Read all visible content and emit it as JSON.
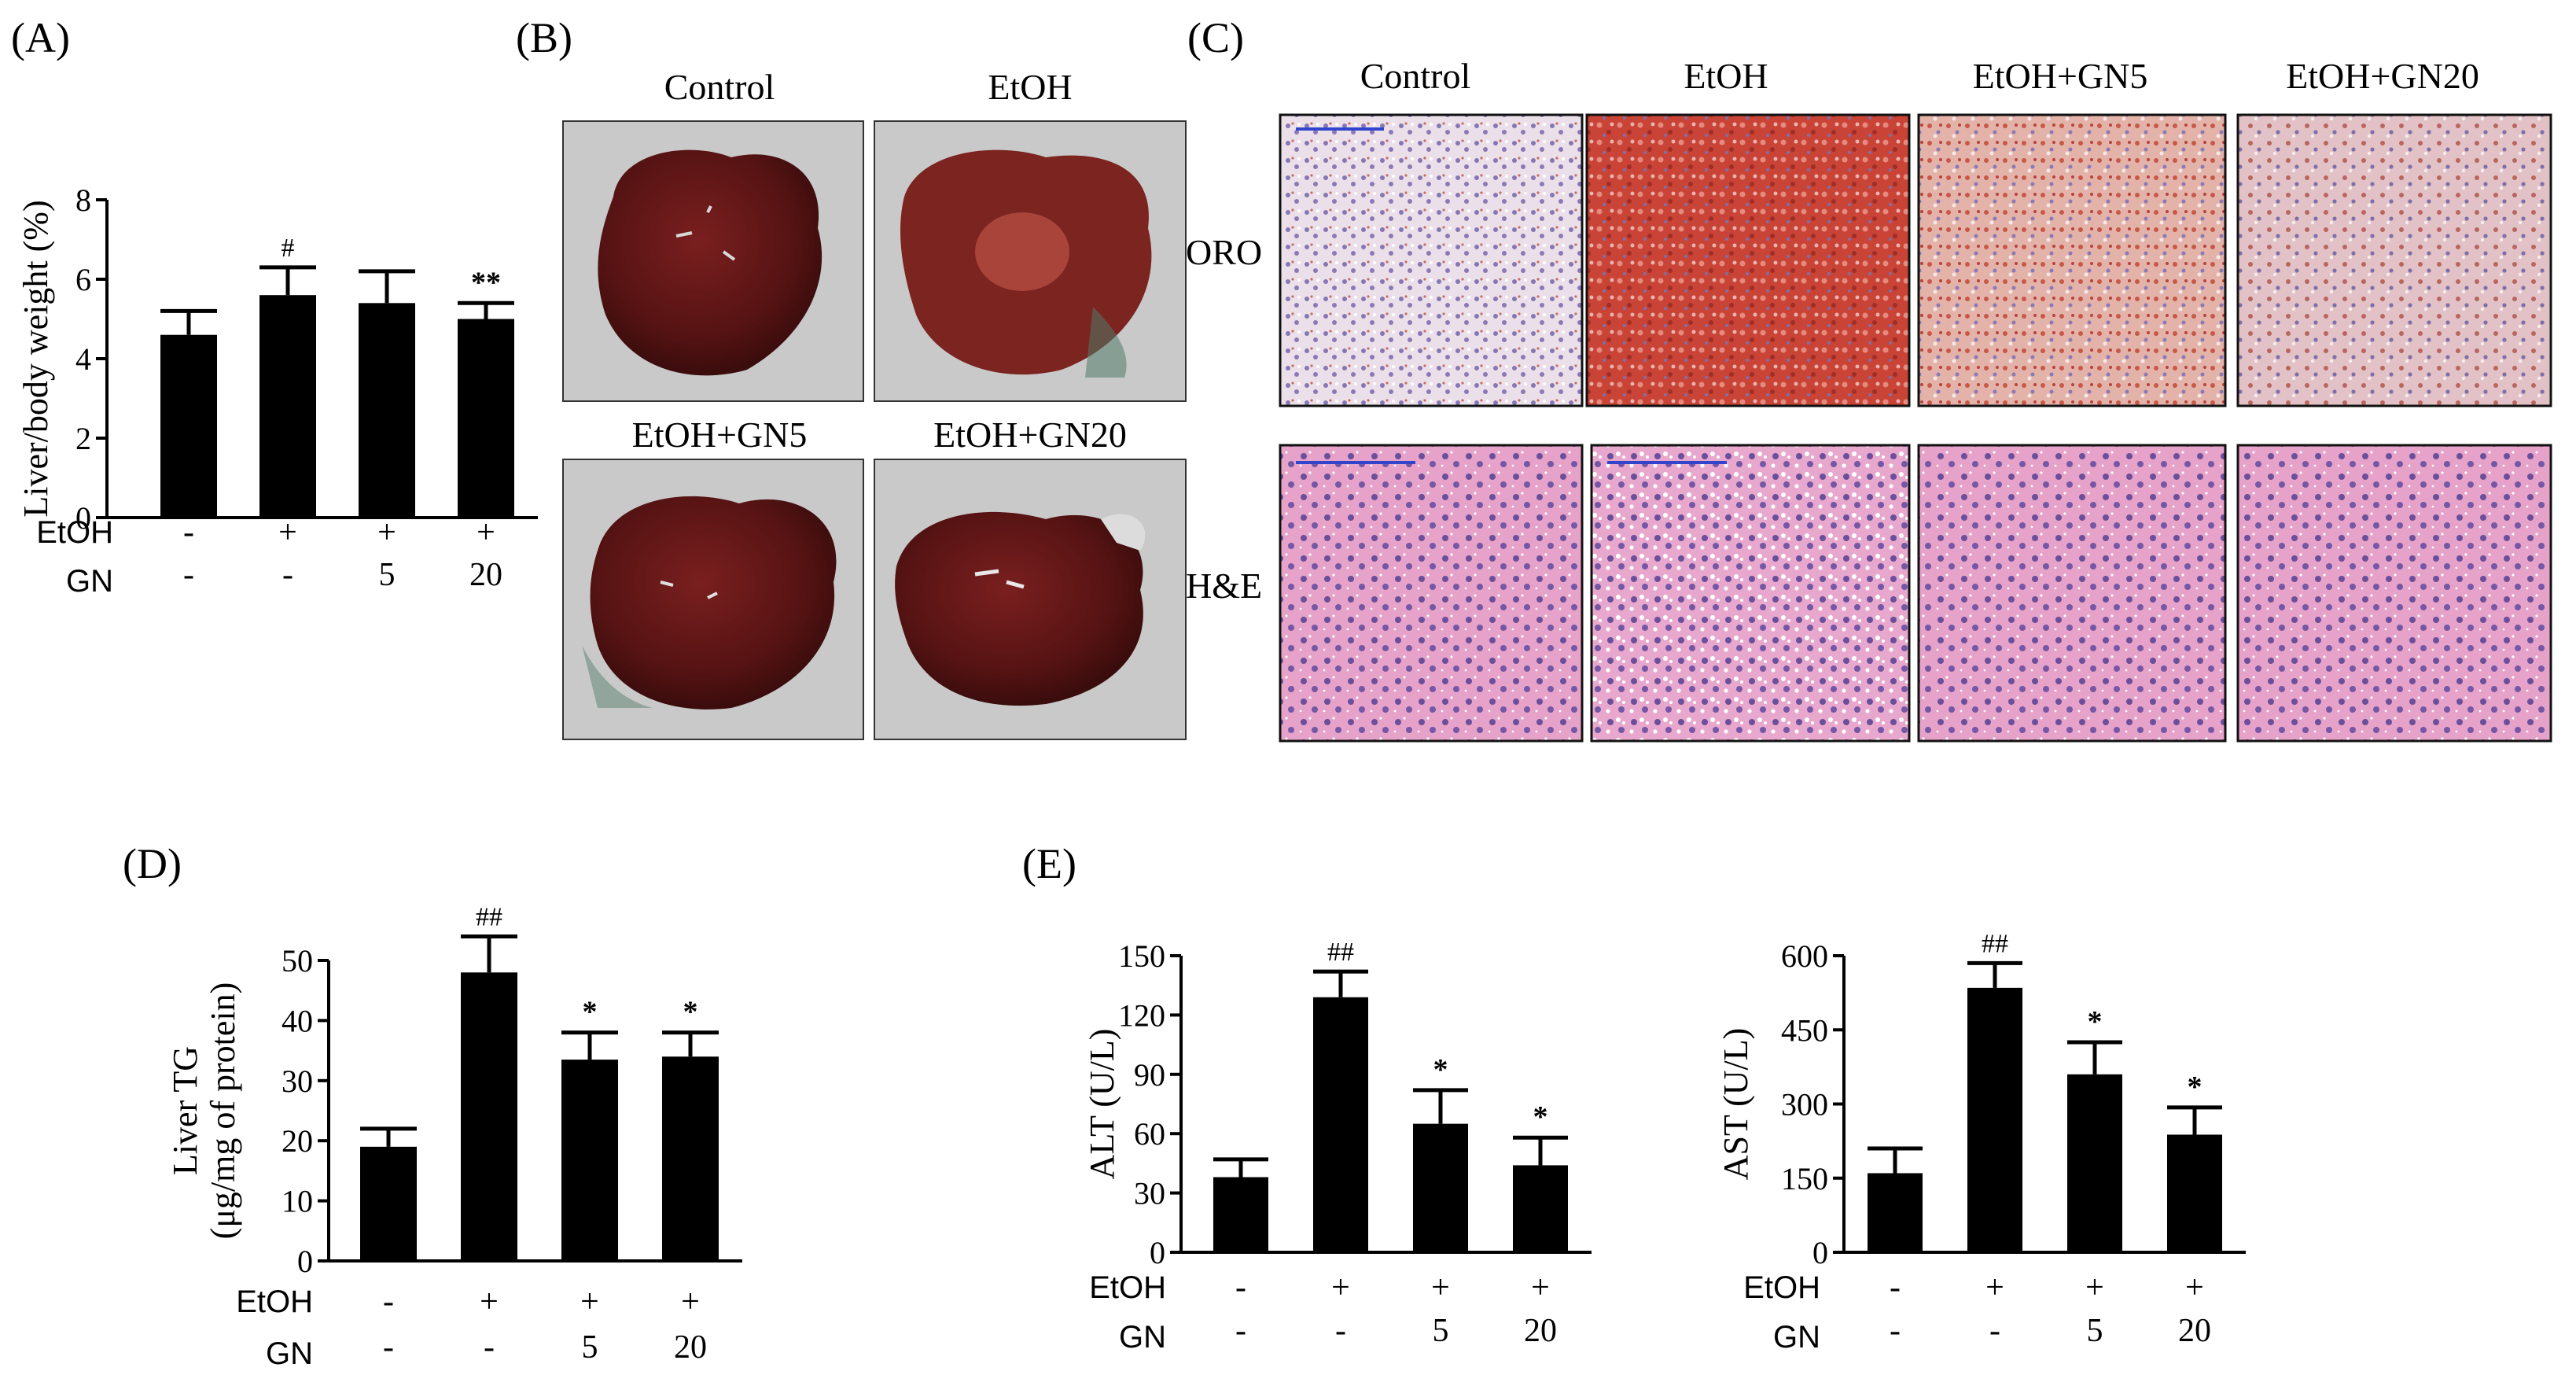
{
  "panels": {
    "A": "(A)",
    "B": "(B)",
    "C": "(C)",
    "D": "(D)",
    "E": "(E)"
  },
  "photos": {
    "labels": [
      "Control",
      "EtOH",
      "EtOH+GN5",
      "EtOH+GN20"
    ]
  },
  "histology": {
    "columns": [
      "Control",
      "EtOH",
      "EtOH+GN5",
      "EtOH+GN20"
    ],
    "rows": [
      "ORO",
      "H&E"
    ],
    "colors": {
      "oro_base": "#e9d9e3",
      "oro_red": "#c8453a",
      "oro_blue": "#7f6fa8",
      "he_base": "#e59fc6",
      "he_nuclei": "#6a4e9a"
    }
  },
  "conditions": {
    "etoh_label": "EtOH",
    "gn_label": "GN",
    "etoh": [
      "-",
      "+",
      "+",
      "+"
    ],
    "gn": [
      "-",
      "-",
      "5",
      "20"
    ]
  },
  "chart_data": [
    {
      "id": "A",
      "type": "bar",
      "ylabel": "Liver/body weight (%)",
      "ylim": [
        0,
        8
      ],
      "yticks": [
        0,
        2,
        4,
        6,
        8
      ],
      "values": [
        4.6,
        5.6,
        5.4,
        5.0
      ],
      "errors": [
        0.6,
        0.7,
        0.8,
        0.4
      ],
      "sig": [
        "",
        "#",
        "",
        "**"
      ]
    },
    {
      "id": "D",
      "type": "bar",
      "ylabel": "Liver TG",
      "ylabel2": "(μg/mg of protein)",
      "ylim": [
        0,
        50
      ],
      "yticks": [
        0,
        10,
        20,
        30,
        40,
        50
      ],
      "values": [
        19,
        48,
        33.5,
        34
      ],
      "errors": [
        3,
        6,
        4.5,
        4
      ],
      "sig": [
        "",
        "##",
        "*",
        "*"
      ]
    },
    {
      "id": "E-ALT",
      "type": "bar",
      "ylabel": "ALT (U/L)",
      "ylim": [
        0,
        150
      ],
      "yticks": [
        0,
        30,
        60,
        90,
        120,
        150
      ],
      "values": [
        38,
        129,
        65,
        44
      ],
      "errors": [
        9,
        13,
        17,
        14
      ],
      "sig": [
        "",
        "##",
        "*",
        "*"
      ]
    },
    {
      "id": "E-AST",
      "type": "bar",
      "ylabel": "AST (U/L)",
      "ylim": [
        0,
        600
      ],
      "yticks": [
        0,
        150,
        300,
        450,
        600
      ],
      "values": [
        160,
        535,
        360,
        238
      ],
      "errors": [
        50,
        50,
        65,
        55
      ],
      "sig": [
        "",
        "##",
        "*",
        "*"
      ]
    }
  ]
}
